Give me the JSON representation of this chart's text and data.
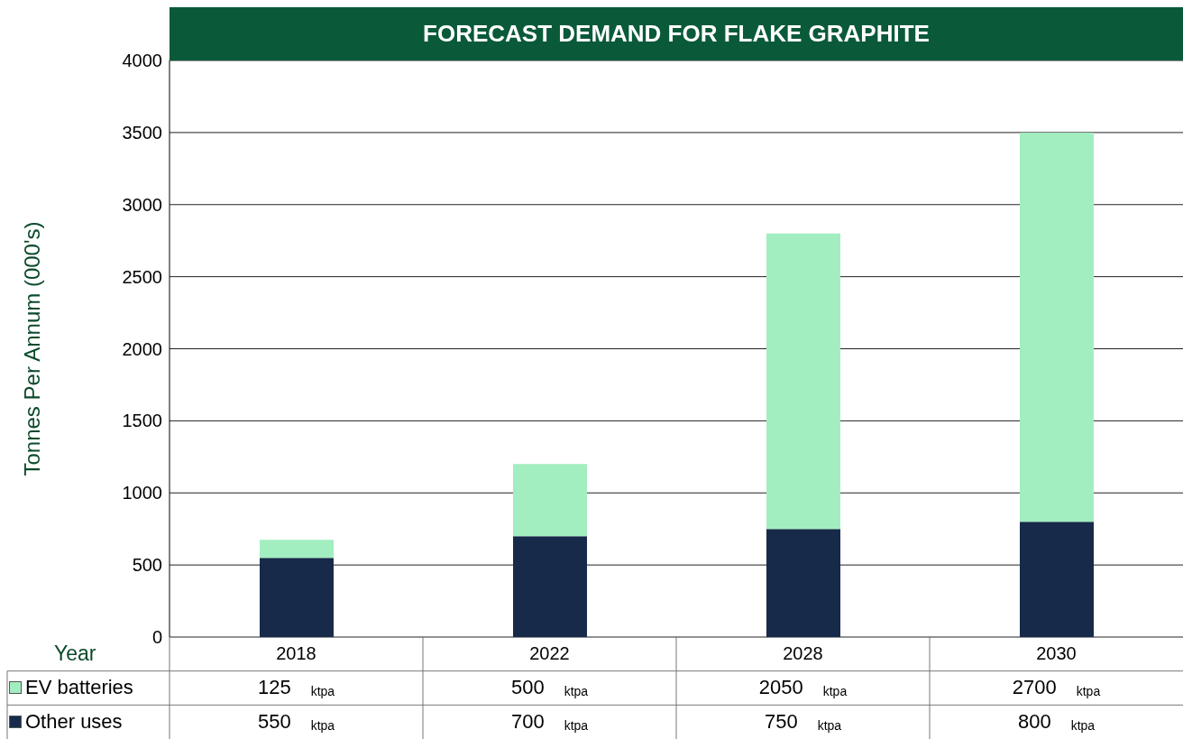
{
  "chart_data": {
    "type": "bar",
    "title": "FORECAST DEMAND FOR FLAKE GRAPHITE",
    "ylabel": "Tonnes Per Annum (000's)",
    "xlabel": "Year",
    "categories": [
      "2018",
      "2022",
      "2028",
      "2030"
    ],
    "stacked": true,
    "series": [
      {
        "name": "Other uses",
        "color": "#172a4a",
        "values": [
          550,
          700,
          750,
          800
        ],
        "value_labels": [
          "550 ktpa",
          "700 ktpa",
          "750 ktpa",
          "800 ktpa"
        ]
      },
      {
        "name": "EV batteries",
        "color": "#a2eec0",
        "values": [
          125,
          500,
          2050,
          2700
        ],
        "value_labels": [
          "125 ktpa",
          "500 ktpa",
          "2050 ktpa",
          "2700 ktpa"
        ]
      }
    ],
    "ylim": [
      0,
      4000
    ],
    "yticks": [
      0,
      500,
      1000,
      1500,
      2000,
      2500,
      3000,
      3500,
      4000
    ],
    "grid": "y",
    "legend": "bottom"
  }
}
